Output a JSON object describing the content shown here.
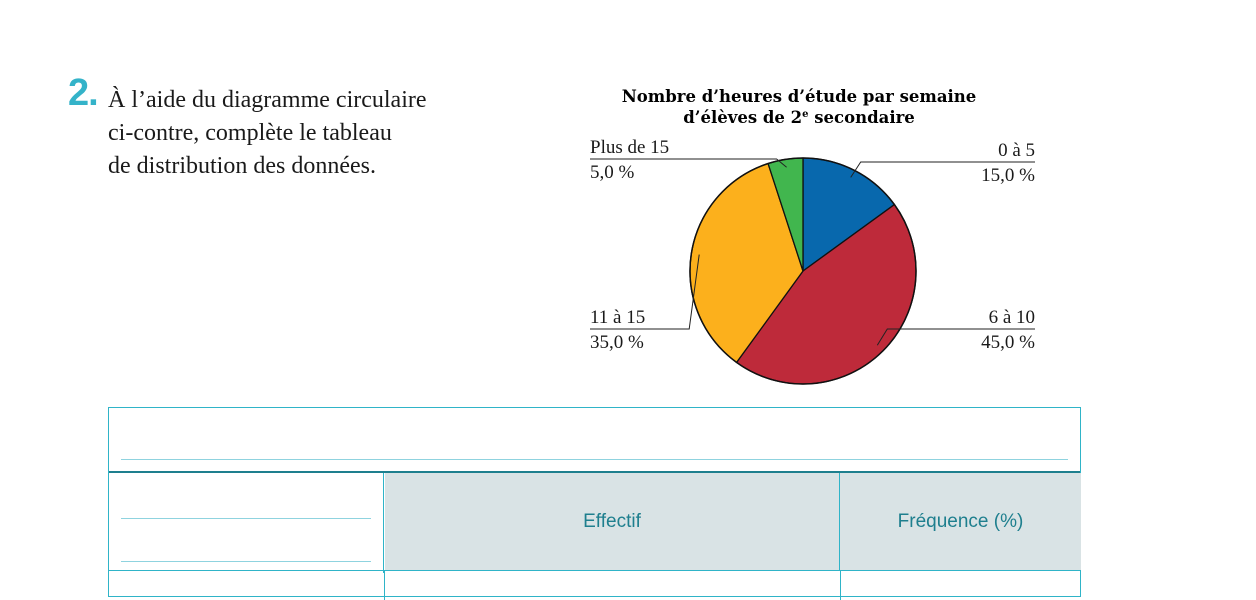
{
  "question": {
    "number": "2.",
    "lines": [
      "À l’aide du diagramme circulaire",
      "ci-contre, complète le tableau",
      "de distribution des données."
    ]
  },
  "chart_data": {
    "type": "pie",
    "title_line1": "Nombre d’heures d’étude par semaine",
    "title_line2_pre": "d’élèves de 2",
    "title_line2_sup": "e",
    "title_line2_post": " secondaire",
    "slices": [
      {
        "label": "0 à 5",
        "value": 15.0,
        "pct": "15,0 %",
        "color": "#0868ad"
      },
      {
        "label": "6 à 10",
        "value": 45.0,
        "pct": "45,0 %",
        "color": "#be2a3a"
      },
      {
        "label": "11 à 15",
        "value": 35.0,
        "pct": "35,0 %",
        "color": "#fcb01c"
      },
      {
        "label": "Plus de 15",
        "value": 5.0,
        "pct": "5,0 %",
        "color": "#41b64e"
      }
    ]
  },
  "table": {
    "headers": [
      "Effectif",
      "Fréquence (%)"
    ]
  }
}
